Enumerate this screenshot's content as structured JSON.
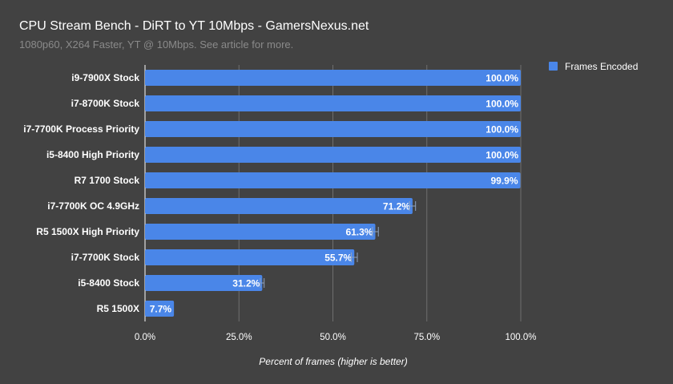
{
  "chart_data": {
    "type": "bar",
    "orientation": "horizontal",
    "title": "CPU Stream Bench - DiRT to YT 10Mbps  - GamersNexus.net",
    "subtitle": "1080p60, X264 Faster, YT @ 10Mbps. See article for more.",
    "xlabel": "Percent of frames (higher is better)",
    "ylabel": "",
    "xlim": [
      0,
      100
    ],
    "x_ticks": [
      "0.0%",
      "25.0%",
      "50.0%",
      "75.0%",
      "100.0%"
    ],
    "grid": true,
    "legend_position": "top-right",
    "categories": [
      "i9-7900X Stock",
      "i7-8700K Stock",
      "i7-7700K Process Priority",
      "i5-8400  High Priority",
      "R7 1700 Stock",
      "i7-7700K OC 4.9GHz",
      "R5 1500X High Priority",
      "i7-7700K Stock",
      "i5-8400 Stock",
      "R5 1500X"
    ],
    "series": [
      {
        "name": "Frames Encoded",
        "color": "#4a86e8",
        "values": [
          100.0,
          100.0,
          100.0,
          100.0,
          99.9,
          71.2,
          61.3,
          55.7,
          31.2,
          7.7
        ],
        "labels": [
          "100.0%",
          "100.0%",
          "100.0%",
          "100.0%",
          "99.9%",
          "71.2%",
          "61.3%",
          "55.7%",
          "31.2%",
          "7.7%"
        ],
        "error": [
          0,
          0,
          0,
          0,
          0,
          0.8,
          0.8,
          0.8,
          0.5,
          0
        ]
      }
    ]
  },
  "colors": {
    "background": "#424242",
    "grid": "#6e6e6e",
    "errorbar": "#8fa3c0"
  }
}
